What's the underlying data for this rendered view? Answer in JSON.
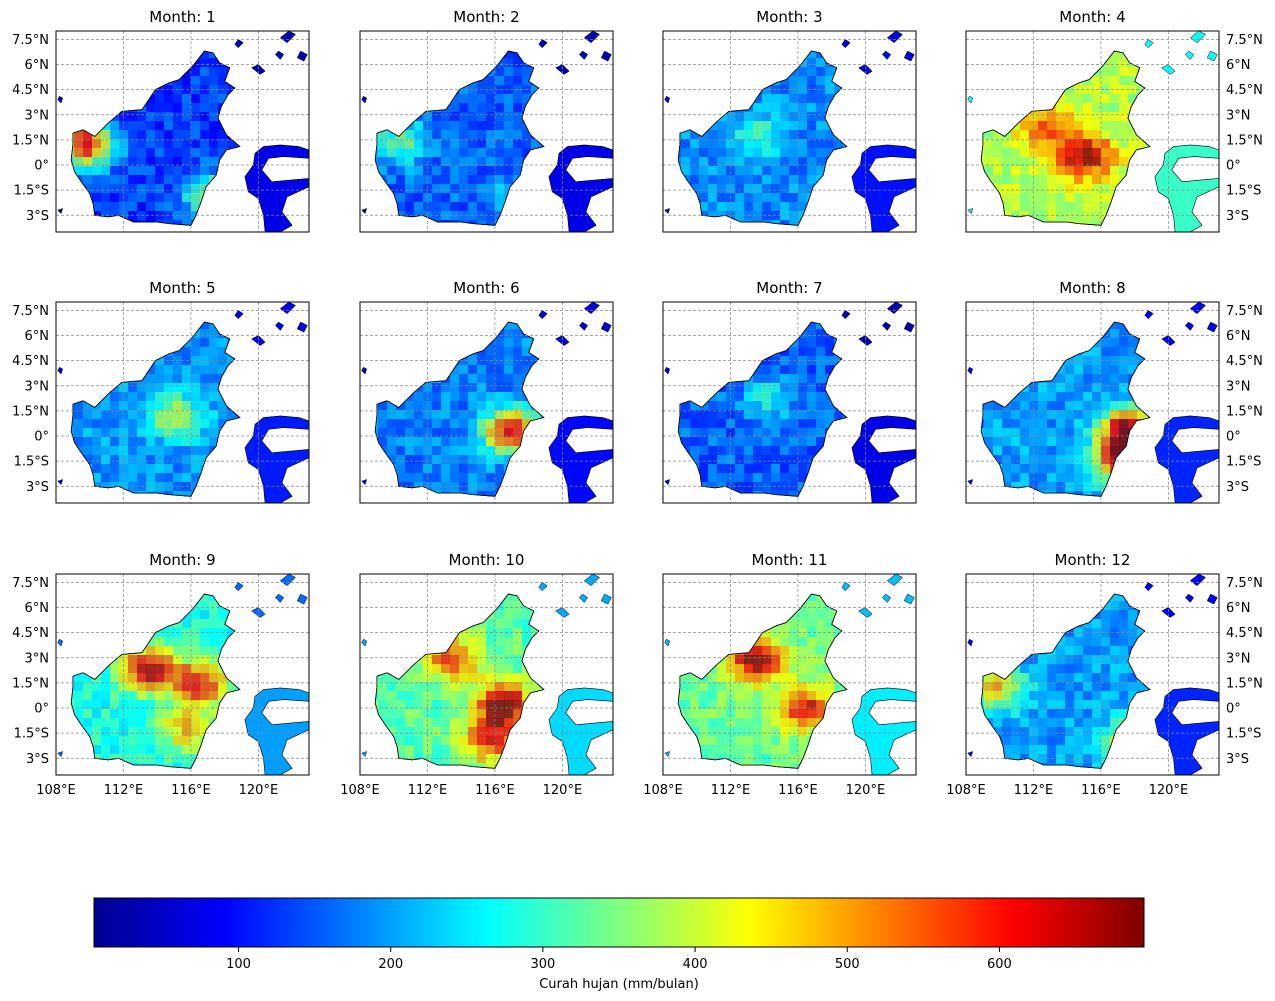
{
  "chart_data": {
    "type": "heatmap",
    "layout": {
      "rows": 3,
      "cols": 4
    },
    "panels": [
      {
        "title": "Month: 1",
        "intensity": 0.18,
        "hotspots": [
          [
            0.1,
            0.54,
            0.9
          ],
          [
            0.6,
            0.8,
            0.6
          ]
        ]
      },
      {
        "title": "Month: 2",
        "intensity": 0.22,
        "hotspots": [
          [
            0.14,
            0.53,
            0.5
          ],
          [
            0.62,
            0.82,
            0.4
          ]
        ]
      },
      {
        "title": "Month: 3",
        "intensity": 0.26,
        "hotspots": [
          [
            0.35,
            0.5,
            0.45
          ]
        ]
      },
      {
        "title": "Month: 4",
        "intensity": 0.55,
        "hotspots": [
          [
            0.45,
            0.6,
            1.0
          ],
          [
            0.85,
            0.15,
            1.0
          ],
          [
            0.3,
            0.45,
            0.8
          ]
        ]
      },
      {
        "title": "Month: 5",
        "intensity": 0.27,
        "hotspots": [
          [
            0.45,
            0.55,
            0.6
          ],
          [
            0.9,
            0.12,
            0.7
          ]
        ]
      },
      {
        "title": "Month: 6",
        "intensity": 0.25,
        "hotspots": [
          [
            0.58,
            0.62,
            0.9
          ],
          [
            0.92,
            0.18,
            0.9
          ]
        ]
      },
      {
        "title": "Month: 7",
        "intensity": 0.22,
        "hotspots": [
          [
            0.4,
            0.45,
            0.4
          ]
        ]
      },
      {
        "title": "Month: 8",
        "intensity": 0.28,
        "hotspots": [
          [
            0.62,
            0.62,
            1.0
          ],
          [
            0.6,
            0.78,
            0.9
          ]
        ]
      },
      {
        "title": "Month: 9",
        "intensity": 0.4,
        "hotspots": [
          [
            0.35,
            0.45,
            0.95
          ],
          [
            0.55,
            0.52,
            0.9
          ],
          [
            0.5,
            0.75,
            0.7
          ]
        ]
      },
      {
        "title": "Month: 10",
        "intensity": 0.46,
        "hotspots": [
          [
            0.55,
            0.62,
            1.0
          ],
          [
            0.35,
            0.4,
            0.85
          ],
          [
            0.5,
            0.8,
            0.9
          ]
        ]
      },
      {
        "title": "Month: 11",
        "intensity": 0.48,
        "hotspots": [
          [
            0.35,
            0.4,
            1.0
          ],
          [
            0.55,
            0.65,
            0.9
          ]
        ]
      },
      {
        "title": "Month: 12",
        "intensity": 0.28,
        "hotspots": [
          [
            0.1,
            0.54,
            0.7
          ],
          [
            0.62,
            0.82,
            0.6
          ]
        ]
      }
    ],
    "lon_ticks": [
      "108°E",
      "112°E",
      "116°E",
      "120°E"
    ],
    "lat_ticks": [
      "7.5°N",
      "6°N",
      "4.5°N",
      "3°N",
      "1.5°N",
      "0°",
      "1.5°S",
      "3°S"
    ],
    "lon_tick_values": [
      108,
      112,
      116,
      120
    ],
    "lat_tick_values": [
      7.5,
      6,
      4.5,
      3,
      1.5,
      0,
      -1.5,
      -3
    ],
    "lon_range": [
      108,
      123
    ],
    "lat_range": [
      -4,
      8
    ],
    "grid": true,
    "colormap": "jet",
    "colorbar": {
      "label": "Curah hujan (mm/bulan)",
      "ticks": [
        100,
        200,
        300,
        400,
        500,
        600
      ],
      "range": [
        5,
        695
      ],
      "orientation": "horizontal"
    }
  }
}
